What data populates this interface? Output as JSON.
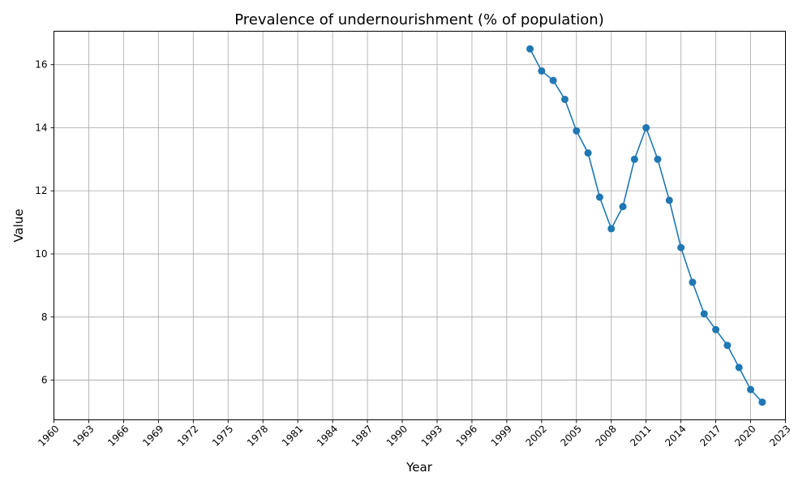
{
  "chart_data": {
    "type": "line",
    "title": "Prevalence of undernourishment (% of population)",
    "xlabel": "Year",
    "ylabel": "Value",
    "xlim": [
      1960,
      2023
    ],
    "ylim": [
      4.74,
      17.06
    ],
    "x_ticks": [
      1960,
      1963,
      1966,
      1969,
      1972,
      1975,
      1978,
      1981,
      1984,
      1987,
      1990,
      1993,
      1996,
      1999,
      2002,
      2005,
      2008,
      2011,
      2014,
      2017,
      2020,
      2023
    ],
    "y_ticks": [
      6,
      8,
      10,
      12,
      14,
      16
    ],
    "grid": true,
    "series": [
      {
        "color": "#1f77b4",
        "marker": "circle",
        "x": [
          2001,
          2002,
          2003,
          2004,
          2005,
          2006,
          2007,
          2008,
          2009,
          2010,
          2011,
          2012,
          2013,
          2014,
          2015,
          2016,
          2017,
          2018,
          2019,
          2020,
          2021
        ],
        "y": [
          16.5,
          15.8,
          15.5,
          14.9,
          13.9,
          13.2,
          11.8,
          10.8,
          11.5,
          13.0,
          14.0,
          13.0,
          11.7,
          10.2,
          9.1,
          8.1,
          7.6,
          7.1,
          6.4,
          5.7,
          5.3
        ]
      }
    ]
  }
}
